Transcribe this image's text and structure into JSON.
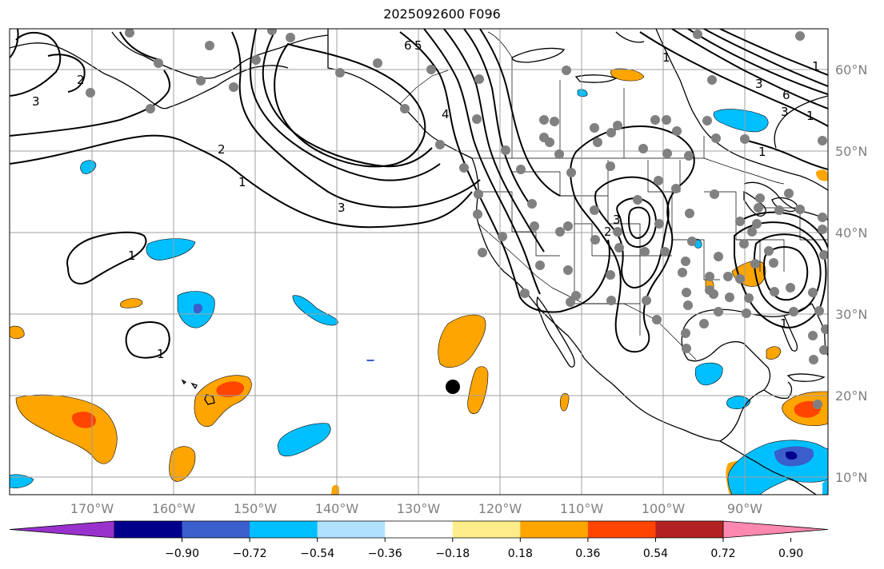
{
  "title": "2025092600 F096",
  "lat_labels": [
    "60°N",
    "50°N",
    "40°N",
    "30°N",
    "20°N",
    "10°N"
  ],
  "lon_labels": [
    "170°W",
    "160°W",
    "150°W",
    "140°W",
    "130°W",
    "120°W",
    "110°W",
    "100°W",
    "90°W"
  ],
  "colorbar": {
    "ticks": [
      "−0.90",
      "−0.72",
      "−0.54",
      "−0.36",
      "−0.18",
      "0.18",
      "0.36",
      "0.54",
      "0.72",
      "0.90"
    ],
    "colors": [
      "#9932cc",
      "#00008b",
      "#3a5fcd",
      "#00bfff",
      "#b0e2ff",
      "#ffffff",
      "#ffec8b",
      "#ffa500",
      "#ff4500",
      "#b22222",
      "#ff88b0"
    ]
  },
  "contour_labels": [
    "3",
    "2",
    "1",
    "2",
    "1",
    "3",
    "4",
    "5",
    "6",
    "1",
    "1",
    "3",
    "6",
    "3",
    "2",
    "3",
    "1",
    "1",
    "1",
    "1"
  ],
  "colors": {
    "land_outline": "#000000",
    "grid": "#a0a0a0",
    "station_dot": "#808080",
    "marker": "#000000"
  }
}
